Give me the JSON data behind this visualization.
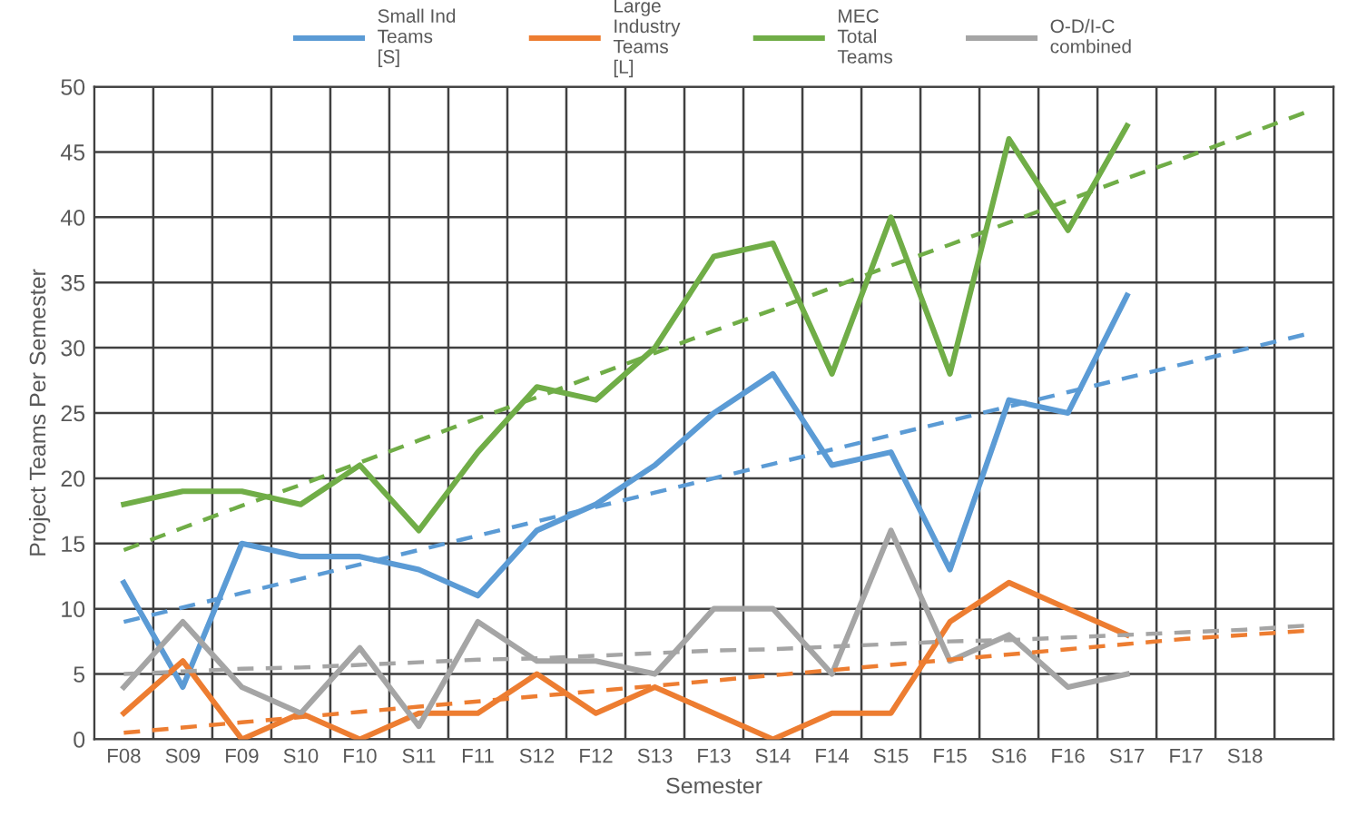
{
  "chart_data": {
    "type": "line",
    "xlabel": "Semester",
    "ylabel": "Project Teams Per Semester",
    "categories": [
      "F08",
      "S09",
      "F09",
      "S10",
      "F10",
      "S11",
      "F11",
      "S12",
      "F12",
      "S13",
      "F13",
      "S14",
      "F14",
      "S15",
      "F15",
      "S16",
      "F16",
      "S17",
      "F17",
      "S18",
      null
    ],
    "series": [
      {
        "name": "Small Ind\nTeams\n[S]",
        "color": "#5b9bd5",
        "values": [
          12,
          4,
          15,
          14,
          14,
          13,
          11,
          16,
          18,
          21,
          25,
          28,
          21,
          22,
          13,
          26,
          25,
          34,
          null,
          null,
          null
        ]
      },
      {
        "name": "Large\nIndustry\nTeams\n[L]",
        "color": "#ed7d31",
        "values": [
          2,
          6,
          0,
          2,
          0,
          2,
          2,
          5,
          2,
          4,
          2,
          0,
          2,
          2,
          9,
          12,
          10,
          8,
          null,
          null,
          null
        ]
      },
      {
        "name": "MEC\nTotal\nTeams",
        "color": "#70ad47",
        "values": [
          18,
          19,
          19,
          18,
          21,
          16,
          22,
          27,
          26,
          30,
          37,
          38,
          28,
          40,
          28,
          46,
          39,
          47,
          null,
          null,
          null
        ]
      },
      {
        "name": "O-D/I-C\ncombined",
        "color": "#a5a5a5",
        "values": [
          4,
          9,
          4,
          2,
          7,
          1,
          9,
          6,
          6,
          5,
          10,
          10,
          5,
          16,
          6,
          8,
          4,
          5,
          null,
          null,
          null
        ]
      },
      {
        "color": "#5b9bd5",
        "line_style": "dashed",
        "values": [
          9,
          10.1,
          11.2,
          12.3,
          13.4,
          14.5,
          15.6,
          16.7,
          17.8,
          18.9,
          20,
          21.1,
          22.2,
          23.3,
          24.4,
          25.5,
          26.6,
          27.7,
          28.8,
          29.9,
          31
        ]
      },
      {
        "color": "#ed7d31",
        "line_style": "dashed",
        "values": [
          0.5,
          0.9,
          1.3,
          1.7,
          2.1,
          2.5,
          2.9,
          3.3,
          3.7,
          4.1,
          4.5,
          4.9,
          5.3,
          5.7,
          6.1,
          6.5,
          6.9,
          7.3,
          7.7,
          8,
          8.3
        ]
      },
      {
        "color": "#70ad47",
        "line_style": "dashed",
        "values": [
          14.5,
          16.2,
          17.9,
          19.5,
          21.2,
          22.9,
          24.6,
          26.2,
          27.9,
          29.6,
          31.3,
          32.9,
          34.6,
          36.3,
          37.9,
          39.6,
          41.3,
          43,
          44.6,
          46.3,
          48
        ]
      },
      {
        "color": "#a5a5a5",
        "line_style": "dashed",
        "values": [
          5,
          5.2,
          5.4,
          5.5,
          5.7,
          5.9,
          6.1,
          6.2,
          6.4,
          6.6,
          6.8,
          6.9,
          7.1,
          7.3,
          7.5,
          7.6,
          7.8,
          8,
          8.2,
          8.4,
          8.7
        ]
      }
    ],
    "ylim": [
      0,
      50
    ],
    "yticks": [
      0,
      5,
      10,
      15,
      20,
      25,
      30,
      35,
      40,
      45,
      50
    ],
    "grid": true,
    "legend": "top",
    "line_style": "solid"
  }
}
